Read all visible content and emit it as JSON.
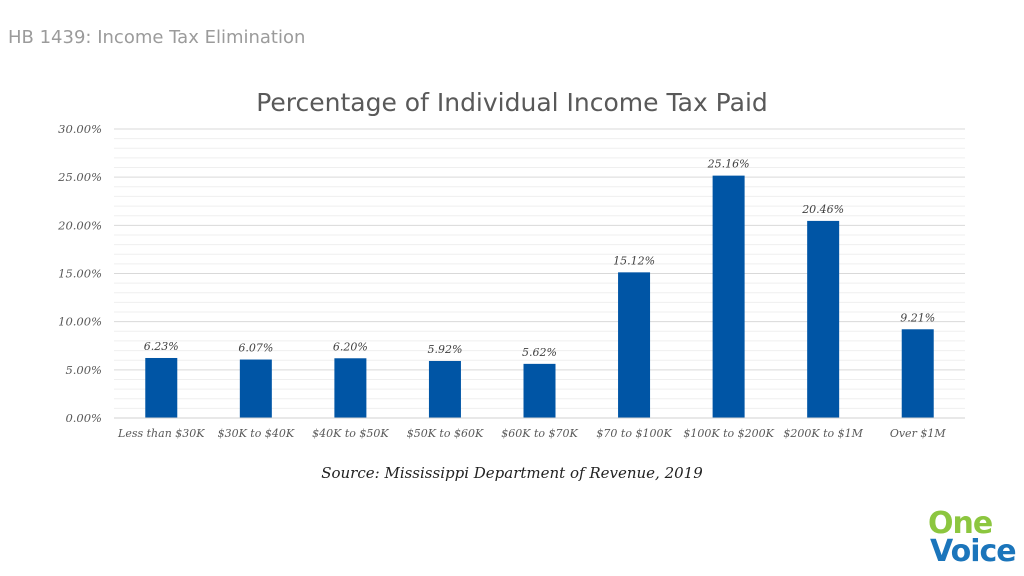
{
  "header": {
    "title": "HB 1439: Income Tax Elimination"
  },
  "chart_data": {
    "type": "bar",
    "title": "Percentage of Individual Income Tax Paid",
    "xlabel": "",
    "ylabel": "",
    "categories": [
      "Less than $30K",
      "$30K to $40K",
      "$40K to $50K",
      "$50K to $60K",
      "$60K to $70K",
      "$70 to $100K",
      "$100K to $200K",
      "$200K to $1M",
      "Over $1M"
    ],
    "values": [
      6.23,
      6.07,
      6.2,
      5.92,
      5.62,
      15.12,
      25.16,
      20.46,
      9.21
    ],
    "data_labels": [
      "6.23%",
      "6.07%",
      "6.20%",
      "5.92%",
      "5.62%",
      "15.12%",
      "25.16%",
      "20.46%",
      "9.21%"
    ],
    "ylim": [
      0,
      30
    ],
    "yticks": [
      0,
      5,
      10,
      15,
      20,
      25,
      30
    ],
    "ytick_labels": [
      "0.00%",
      "5.00%",
      "10.00%",
      "15.00%",
      "20.00%",
      "25.00%",
      "30.00%"
    ],
    "grid": true,
    "bar_color": "#0055a5"
  },
  "source": "Source: Mississippi Department of Revenue, 2019",
  "logo": {
    "line1": "One",
    "line2": "Voice",
    "color1": "#8cc63f",
    "color2": "#1b75bb"
  }
}
